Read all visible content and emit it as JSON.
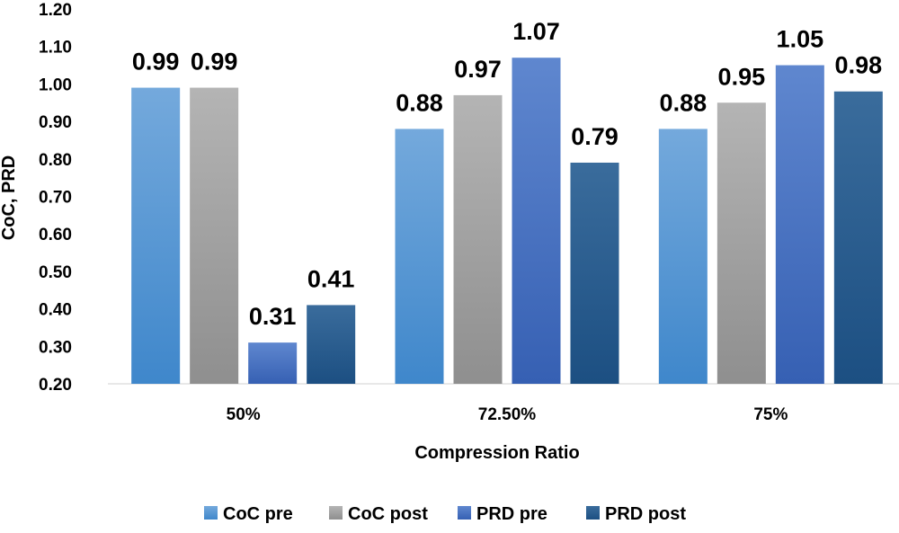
{
  "chart_data": {
    "type": "bar",
    "title": "",
    "xlabel": "Compression Ratio",
    "ylabel": "CoC, PRD",
    "ylim": [
      0.2,
      1.2
    ],
    "yticks": [
      "0.20",
      "0.30",
      "0.40",
      "0.50",
      "0.60",
      "0.70",
      "0.80",
      "0.90",
      "1.00",
      "1.10",
      "1.20"
    ],
    "categories": [
      "50%",
      "72.50%",
      "75%"
    ],
    "grid": false,
    "legend_position": "bottom",
    "series": [
      {
        "name": "CoC pre",
        "color": "#5b9bd5",
        "values": [
          0.99,
          0.88,
          0.88
        ],
        "labels": [
          "0.99",
          "0.88",
          "0.88"
        ]
      },
      {
        "name": "CoC post",
        "color": "#a5a5a5",
        "values": [
          0.99,
          0.97,
          0.95
        ],
        "labels": [
          "0.99",
          "0.97",
          "0.95"
        ]
      },
      {
        "name": "PRD pre",
        "color": "#4472c4",
        "values": [
          0.31,
          1.07,
          1.05
        ],
        "labels": [
          "0.31",
          "1.07",
          "1.05"
        ]
      },
      {
        "name": "PRD post",
        "color": "#255e91",
        "values": [
          0.41,
          0.79,
          0.98
        ],
        "labels": [
          "0.41",
          "0.79",
          "0.98"
        ]
      }
    ]
  }
}
